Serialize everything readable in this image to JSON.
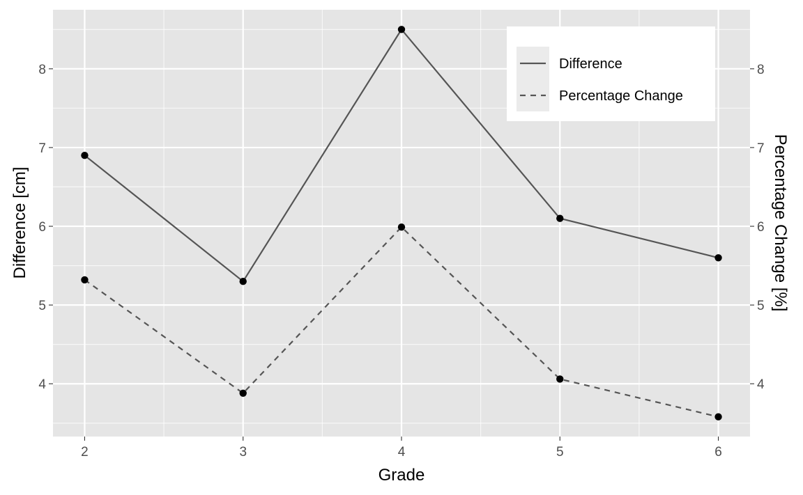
{
  "chart_data": {
    "type": "line",
    "x": [
      2,
      3,
      4,
      5,
      6
    ],
    "xlabel": "Grade",
    "ylabel": "Difference [cm]",
    "ylabel_right": "Percentage Change [%]",
    "xlim": [
      1.8,
      6.2
    ],
    "ylim": [
      3.33,
      8.75
    ],
    "x_ticks": [
      "2",
      "3",
      "4",
      "5",
      "6"
    ],
    "y_ticks": [
      "4",
      "5",
      "6",
      "7",
      "8"
    ],
    "y_ticks_right": [
      "4",
      "5",
      "6",
      "7",
      "8"
    ],
    "series": [
      {
        "name": "Difference",
        "linetype": "solid",
        "values": [
          6.9,
          5.3,
          8.5,
          6.1,
          5.6
        ]
      },
      {
        "name": "Percentage Change",
        "linetype": "dashed",
        "values": [
          5.32,
          3.88,
          5.99,
          4.06,
          3.58
        ]
      }
    ],
    "grid": true,
    "legend": "top-right",
    "colors": {
      "panel_bg": "#e5e5e5",
      "grid_major": "#ffffff",
      "line": "#555555",
      "point": "#000000"
    }
  }
}
